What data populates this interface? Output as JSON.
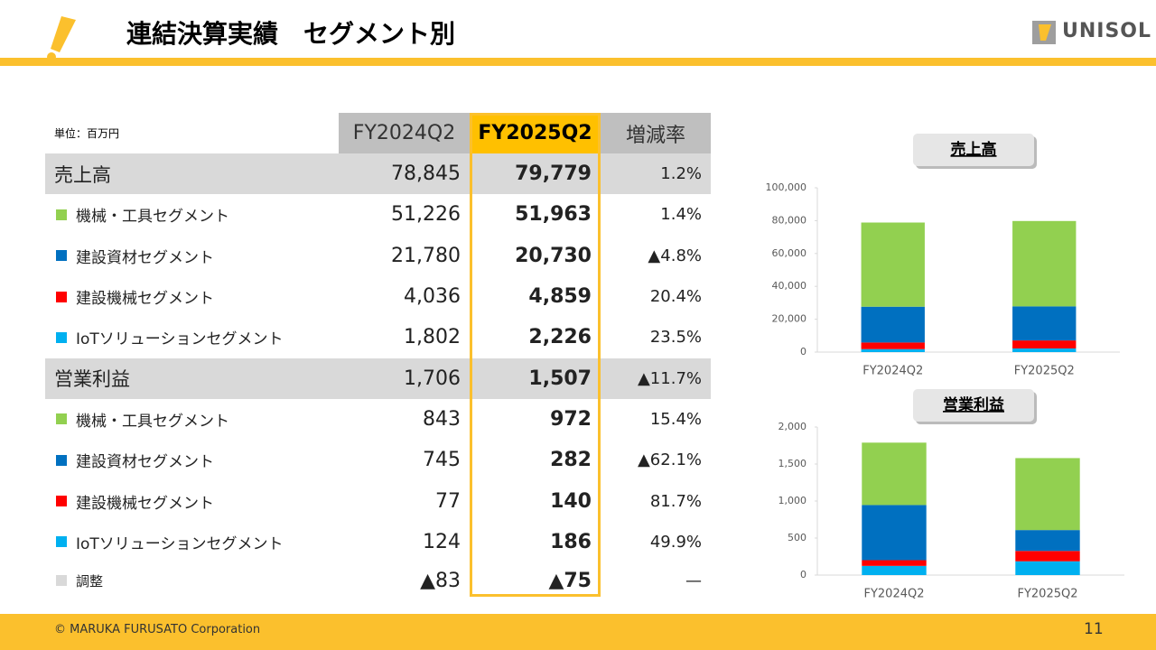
{
  "header": {
    "title": "連結決算実績　セグメント別",
    "logo": "UNISOL"
  },
  "table": {
    "unit": "単位：百万円",
    "columns": [
      "FY2024Q2",
      "FY2025Q2",
      "増減率"
    ],
    "rows": [
      {
        "label": "売上高",
        "total": true,
        "values": [
          "78,845",
          "79,779",
          "1.2%"
        ]
      },
      {
        "label": "機械・工具セグメント",
        "marker": "#92d050",
        "values": [
          "51,226",
          "51,963",
          "1.4%"
        ]
      },
      {
        "label": "建設資材セグメント",
        "marker": "#0070c0",
        "values": [
          "21,780",
          "20,730",
          "▲4.8%"
        ]
      },
      {
        "label": "建設機械セグメント",
        "marker": "#ff0000",
        "values": [
          "4,036",
          "4,859",
          "20.4%"
        ]
      },
      {
        "label": "IoTソリューションセグメント",
        "marker": "#00b0f0",
        "values": [
          "1,802",
          "2,226",
          "23.5%"
        ]
      },
      {
        "label": "営業利益",
        "total": true,
        "values": [
          "1,706",
          "1,507",
          "▲11.7%"
        ]
      },
      {
        "label": "機械・工具セグメント",
        "marker": "#92d050",
        "values": [
          "843",
          "972",
          "15.4%"
        ]
      },
      {
        "label": "建設資材セグメント",
        "marker": "#0070c0",
        "values": [
          "745",
          "282",
          "▲62.1%"
        ]
      },
      {
        "label": "建設機械セグメント",
        "marker": "#ff0000",
        "values": [
          "77",
          "140",
          "81.7%"
        ]
      },
      {
        "label": "IoTソリューションセグメント",
        "marker": "#00b0f0",
        "values": [
          "124",
          "186",
          "49.9%"
        ]
      },
      {
        "label": "調整",
        "marker": "#d9d9d9",
        "values": [
          "▲83",
          "▲75",
          "—"
        ]
      }
    ]
  },
  "chart_data": [
    {
      "type": "bar",
      "stacked": true,
      "title": "売上高",
      "categories": [
        "FY2024Q2",
        "FY2025Q2"
      ],
      "series": [
        {
          "color": "#00b0f0",
          "values": [
            1802,
            2226
          ]
        },
        {
          "color": "#ff0000",
          "values": [
            4036,
            4859
          ]
        },
        {
          "color": "#0070c0",
          "values": [
            21780,
            20730
          ]
        },
        {
          "color": "#92d050",
          "values": [
            51226,
            51963
          ]
        }
      ],
      "ylim": [
        0,
        100000
      ],
      "yticks": [
        0,
        {
          "value": 20000,
          "label": "20,000"
        },
        {
          "value": 40000,
          "label": "40,000"
        },
        {
          "value": 60000,
          "label": "60,000"
        },
        {
          "value": 80000,
          "label": "80,000"
        },
        {
          "value": 100000,
          "label": "100,000"
        }
      ],
      "grid": false
    },
    {
      "type": "bar",
      "stacked": true,
      "title": "営業利益",
      "categories": [
        "FY2024Q2",
        "FY2025Q2"
      ],
      "series": [
        {
          "color": "#00b0f0",
          "values": [
            124,
            186
          ]
        },
        {
          "color": "#ff0000",
          "values": [
            77,
            140
          ]
        },
        {
          "color": "#0070c0",
          "values": [
            745,
            282
          ]
        },
        {
          "color": "#92d050",
          "values": [
            843,
            972
          ]
        }
      ],
      "ylim": [
        0,
        2000
      ],
      "yticks": [
        0,
        500,
        {
          "value": 1000,
          "label": "1,000"
        },
        {
          "value": 1500,
          "label": "1,500"
        },
        {
          "value": 2000,
          "label": "2,000"
        }
      ],
      "grid": false
    }
  ],
  "footer": {
    "copyright": "© MARUKA FURUSATO Corporation",
    "page": "11"
  }
}
